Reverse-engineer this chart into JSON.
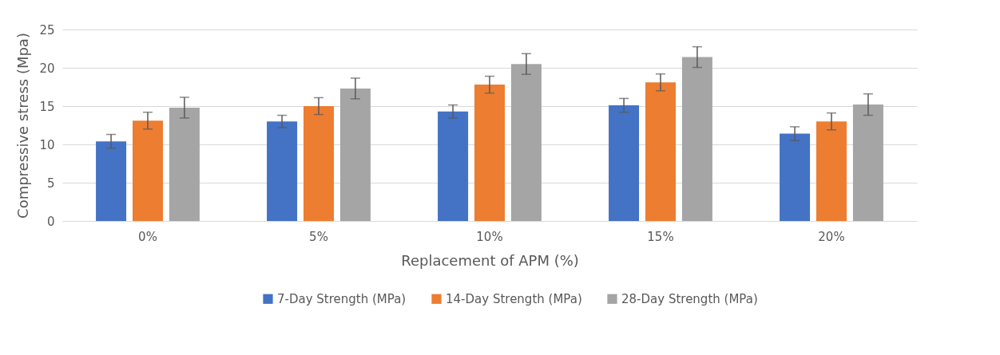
{
  "chart_data": {
    "type": "bar",
    "xlabel": "Replacement of APM (%)",
    "ylabel": "Compressive stress (Mpa)",
    "categories": [
      "0%",
      "5%",
      "10%",
      "15%",
      "20%"
    ],
    "series": [
      {
        "name": "7-Day Strength (MPa)",
        "color": "#4472c4",
        "values": [
          10.4,
          13.0,
          14.3,
          15.1,
          11.4
        ],
        "errors": [
          0.9,
          0.8,
          0.85,
          0.9,
          0.9
        ]
      },
      {
        "name": "14-Day Strength (MPa)",
        "color": "#ed7d31",
        "values": [
          13.1,
          15.0,
          17.8,
          18.1,
          13.0
        ],
        "errors": [
          1.1,
          1.1,
          1.1,
          1.1,
          1.1
        ]
      },
      {
        "name": "28-Day Strength (MPa)",
        "color": "#a5a5a5",
        "values": [
          14.8,
          17.3,
          20.5,
          21.4,
          15.2
        ],
        "errors": [
          1.35,
          1.35,
          1.35,
          1.35,
          1.4
        ]
      }
    ],
    "ylim": [
      0,
      25
    ],
    "yticks": [
      0,
      5,
      10,
      15,
      20,
      25
    ],
    "grid": "y",
    "legend": "bottom"
  }
}
